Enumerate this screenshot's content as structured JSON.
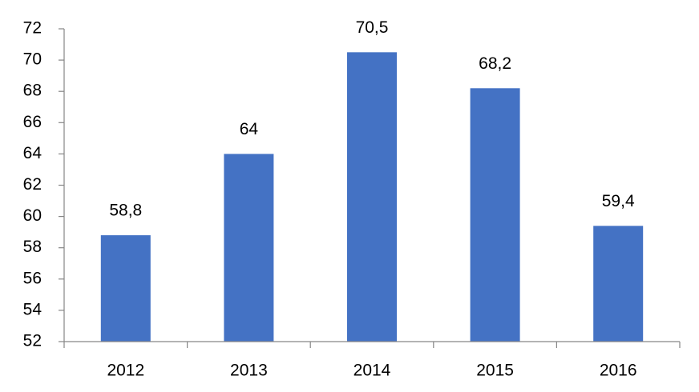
{
  "chart_data": {
    "type": "bar",
    "categories": [
      "2012",
      "2013",
      "2014",
      "2015",
      "2016"
    ],
    "values": [
      58.8,
      64,
      70.5,
      68.2,
      59.4
    ],
    "value_labels": [
      "58,8",
      "64",
      "70,5",
      "68,2",
      "59,4"
    ],
    "color": "#4472c4",
    "ylim": [
      52,
      72
    ],
    "yticks": [
      52,
      54,
      56,
      58,
      60,
      62,
      64,
      66,
      68,
      70,
      72
    ],
    "grid": false
  }
}
